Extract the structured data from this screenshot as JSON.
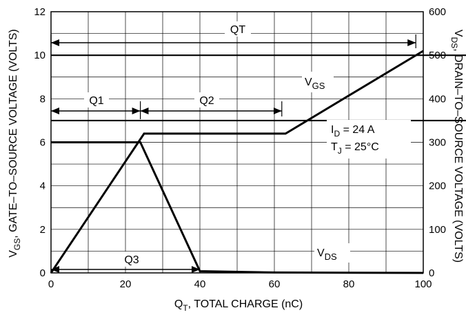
{
  "chart_data": {
    "type": "line",
    "xlabel": "Q_T, TOTAL CHARGE (nC)",
    "ylabel_left": "V_GS, GATE–TO–SOURCE VOLTAGE (VOLTS)",
    "ylabel_right": "V_DS, DRAIN–TO–SOURCE VOLTAGE (VOLTS)",
    "xlim": [
      0,
      100
    ],
    "ylim_left": [
      0,
      12
    ],
    "ylim_right": [
      0,
      600
    ],
    "x_ticks": [
      "0",
      "20",
      "40",
      "60",
      "80",
      "100"
    ],
    "y_left_ticks": [
      "0",
      "2",
      "4",
      "6",
      "8",
      "10",
      "12"
    ],
    "y_right_ticks": [
      "0",
      "100",
      "200",
      "300",
      "400",
      "500",
      "600"
    ],
    "grid": true,
    "series": [
      {
        "name": "V_GS",
        "axis": "left",
        "points": [
          [
            0,
            0
          ],
          [
            25,
            6.4
          ],
          [
            63,
            6.4
          ],
          [
            100,
            10.2
          ]
        ]
      },
      {
        "name": "V_DS",
        "axis": "right",
        "points": [
          [
            0,
            300
          ],
          [
            24,
            300
          ],
          [
            40,
            4
          ],
          [
            60,
            1
          ],
          [
            100,
            0
          ]
        ]
      }
    ],
    "annotations": {
      "qt": {
        "label": "QT",
        "from": 0,
        "to": 98
      },
      "q1": {
        "label": "Q1",
        "from": 0,
        "to": 24
      },
      "q2": {
        "label": "Q2",
        "from": 24,
        "to": 62
      },
      "q3": {
        "label": "Q3",
        "from": 0,
        "to": 40
      },
      "vgs_label": "V_GS",
      "vds_label": "V_DS",
      "id_label": "I_D = 24 A",
      "tj_label": "T_J = 25°C"
    }
  }
}
